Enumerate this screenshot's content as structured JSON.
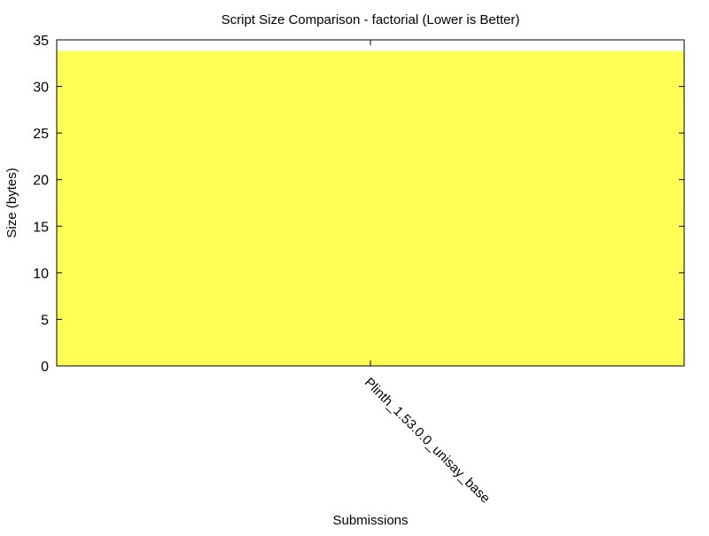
{
  "chart_data": {
    "type": "bar",
    "title": "Script Size Comparison - factorial (Lower is Better)",
    "xlabel": "Submissions",
    "ylabel": "Size (bytes)",
    "categories": [
      "Plinth_1.53.0.0_unisay_base"
    ],
    "tick_label_display": "Plinth_1.53.0.0_unisay_base",
    "values": [
      33.8
    ],
    "ylim": [
      0,
      35
    ],
    "yticks": [
      0,
      5,
      10,
      15,
      20,
      25,
      30,
      35
    ],
    "grid": false,
    "legend": "none",
    "bar_color": "#ffff55",
    "axis_color": "#000000"
  }
}
